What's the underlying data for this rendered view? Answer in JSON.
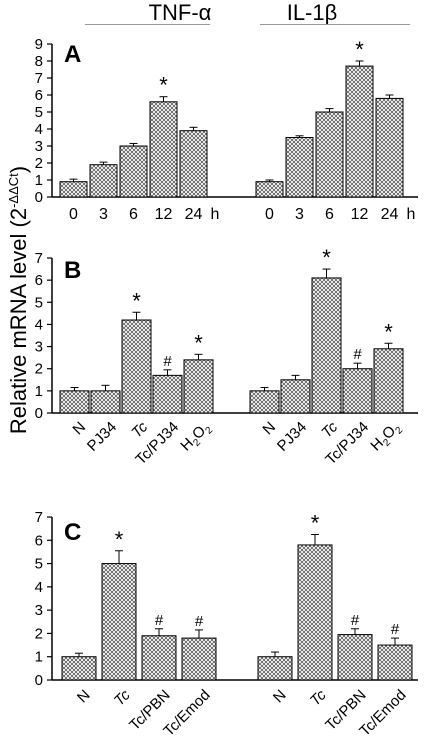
{
  "headers": {
    "left": "TNF-α",
    "right": "IL-1β"
  },
  "ylabel": {
    "base": "Relative mRNA level (2",
    "sup": "-ΔΔCt",
    "tail": ")"
  },
  "chart_data": [
    {
      "type": "bar",
      "panel_label": "A",
      "ylim": [
        0,
        9
      ],
      "yticks": [
        "0",
        "1",
        "2",
        "3",
        "4",
        "5",
        "6",
        "7",
        "8",
        "9"
      ],
      "xunit": "h",
      "groups": [
        {
          "name": "TNF-α",
          "categories": [
            "0",
            "3",
            "6",
            "12",
            "24"
          ],
          "values": [
            0.9,
            1.9,
            3.0,
            5.6,
            3.9
          ],
          "errors": [
            0.15,
            0.15,
            0.15,
            0.3,
            0.2
          ],
          "marks": [
            "",
            "",
            "",
            "*",
            ""
          ]
        },
        {
          "name": "IL-1β",
          "categories": [
            "0",
            "3",
            "6",
            "12",
            "24"
          ],
          "values": [
            0.9,
            3.5,
            5.0,
            7.7,
            5.8
          ],
          "errors": [
            0.1,
            0.1,
            0.2,
            0.3,
            0.2
          ],
          "marks": [
            "",
            "",
            "",
            "*",
            ""
          ]
        }
      ]
    },
    {
      "type": "bar",
      "panel_label": "B",
      "ylim": [
        0,
        7
      ],
      "yticks": [
        "0",
        "1",
        "2",
        "3",
        "4",
        "5",
        "6",
        "7"
      ],
      "groups": [
        {
          "name": "TNF-α",
          "categories": [
            "N",
            "PJ34",
            "Tc",
            "Tc/PJ34",
            "H2O2"
          ],
          "values": [
            1.0,
            1.0,
            4.2,
            1.7,
            2.4
          ],
          "errors": [
            0.15,
            0.25,
            0.35,
            0.25,
            0.25
          ],
          "marks": [
            "",
            "",
            "*",
            "#",
            "*"
          ]
        },
        {
          "name": "IL-1β",
          "categories": [
            "N",
            "PJ34",
            "Tc",
            "Tc/PJ34",
            "H2O2"
          ],
          "values": [
            1.0,
            1.5,
            6.1,
            2.0,
            2.9
          ],
          "errors": [
            0.15,
            0.2,
            0.4,
            0.25,
            0.25
          ],
          "marks": [
            "",
            "",
            "*",
            "#",
            "*"
          ]
        }
      ]
    },
    {
      "type": "bar",
      "panel_label": "C",
      "ylim": [
        0,
        7
      ],
      "yticks": [
        "0",
        "1",
        "2",
        "3",
        "4",
        "5",
        "6",
        "7"
      ],
      "groups": [
        {
          "name": "TNF-α",
          "categories": [
            "N",
            "Tc",
            "Tc/PBN",
            "Tc/Emod"
          ],
          "values": [
            1.0,
            5.0,
            1.9,
            1.8
          ],
          "errors": [
            0.15,
            0.55,
            0.3,
            0.35
          ],
          "marks": [
            "",
            "*",
            "#",
            "#"
          ]
        },
        {
          "name": "IL-1β",
          "categories": [
            "N",
            "Tc",
            "Tc/PBN",
            "Tc/Emod"
          ],
          "values": [
            1.0,
            5.8,
            1.95,
            1.5
          ],
          "errors": [
            0.2,
            0.45,
            0.25,
            0.3
          ],
          "marks": [
            "",
            "*",
            "#",
            "#"
          ]
        }
      ]
    }
  ]
}
